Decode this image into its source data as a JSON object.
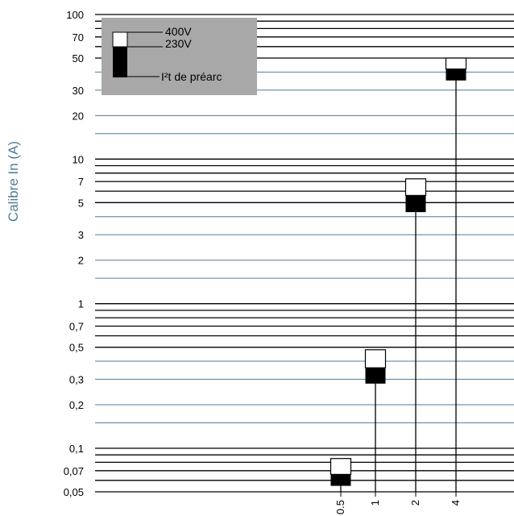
{
  "chart_data": {
    "type": "bar",
    "title": "",
    "xlabel": "",
    "ylabel": "Calibre In (A)",
    "yscale": "log",
    "ylim": [
      0.05,
      100
    ],
    "yticks": [
      {
        "value": 100,
        "label": "100"
      },
      {
        "value": 70,
        "label": "70"
      },
      {
        "value": 50,
        "label": "50"
      },
      {
        "value": 30,
        "label": "30"
      },
      {
        "value": 20,
        "label": "20"
      },
      {
        "value": 10,
        "label": "10"
      },
      {
        "value": 7,
        "label": "7"
      },
      {
        "value": 5,
        "label": "5"
      },
      {
        "value": 3,
        "label": "3"
      },
      {
        "value": 2,
        "label": "2"
      },
      {
        "value": 1,
        "label": "1"
      },
      {
        "value": 0.7,
        "label": "0,7"
      },
      {
        "value": 0.5,
        "label": "0,5"
      },
      {
        "value": 0.3,
        "label": "0,3"
      },
      {
        "value": 0.2,
        "label": "0,2"
      },
      {
        "value": 0.1,
        "label": "0,1"
      },
      {
        "value": 0.07,
        "label": "0,07"
      },
      {
        "value": 0.05,
        "label": "0,05"
      }
    ],
    "gridlines_black": [
      100,
      90,
      80,
      70,
      60,
      50,
      10,
      9,
      8,
      7,
      6,
      5,
      1,
      0.9,
      0.8,
      0.7,
      0.6,
      0.5,
      0.1,
      0.09,
      0.08,
      0.07,
      0.06,
      0.05
    ],
    "gridlines_blue": [
      40,
      30,
      20,
      15,
      4,
      3,
      2,
      1.5,
      0.4,
      0.3,
      0.2,
      0.15
    ],
    "categories": [
      "0.5",
      "1",
      "2",
      "4"
    ],
    "legend": {
      "entries": [
        "400V",
        "230V",
        "I²t de préarc"
      ],
      "background": "#a8a8a8"
    },
    "series": [
      {
        "name": "I²t de préarc",
        "color": "#000000",
        "low": [
          0.055,
          0.28,
          4.3,
          35
        ],
        "high": [
          0.066,
          0.36,
          5.6,
          42
        ]
      },
      {
        "name": "230V",
        "color": "#000000",
        "low": [
          0.066,
          0.36,
          5.6,
          42
        ],
        "high": [
          0.066,
          0.36,
          5.6,
          42
        ]
      },
      {
        "name": "400V",
        "color": "#ffffff",
        "low": [
          0.066,
          0.36,
          5.6,
          42
        ],
        "high": [
          0.085,
          0.48,
          7.3,
          50
        ]
      }
    ],
    "colors": {
      "grid_black": "#000000",
      "grid_blue": "#4f7d96",
      "axis_title": "#4f7d96"
    }
  }
}
